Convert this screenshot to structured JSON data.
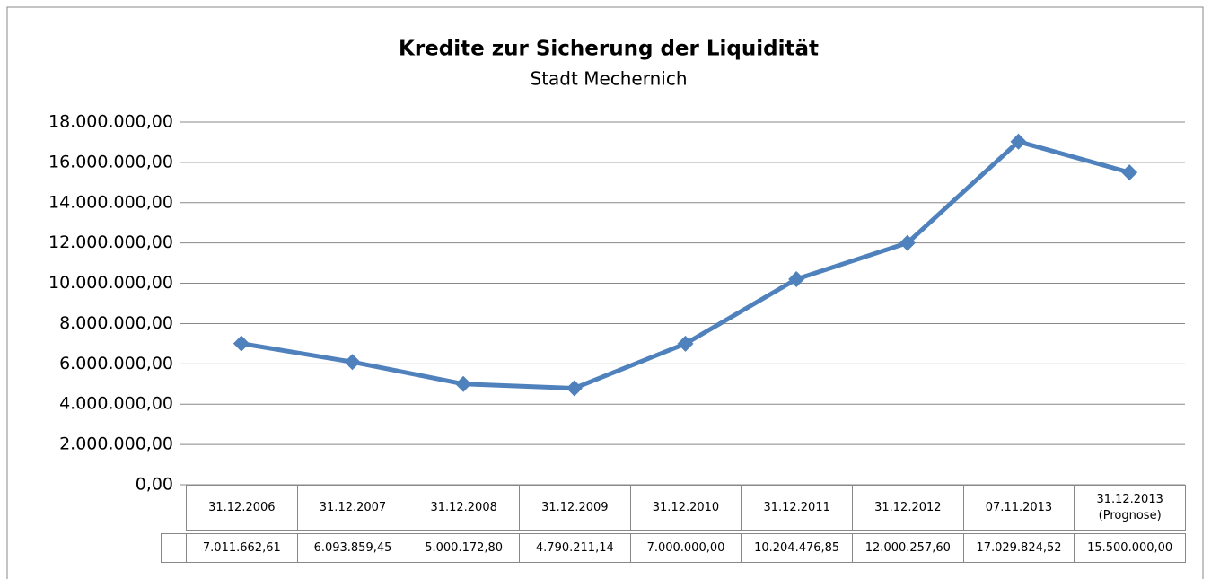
{
  "chart_data": {
    "type": "line",
    "title": "Kredite zur Sicherung der Liquidität",
    "subtitle": "Stadt Mechernich",
    "categories": [
      "31.12.2006",
      "31.12.2007",
      "31.12.2008",
      "31.12.2009",
      "31.12.2010",
      "31.12.2011",
      "31.12.2012",
      "07.11.2013",
      "31.12.2013 (Prognose)"
    ],
    "values": [
      7011662.61,
      6093859.45,
      5000172.8,
      4790211.14,
      7000000.0,
      10204476.85,
      12000257.6,
      17029824.52,
      15500000.0
    ],
    "value_labels": [
      "7.011.662,61",
      "6.093.859,45",
      "5.000.172,80",
      "4.790.211,14",
      "7.000.000,00",
      "10.204.476,85",
      "12.000.257,60",
      "17.029.824,52",
      "15.500.000,00"
    ],
    "color": "#4f81bd",
    "ylim": [
      0,
      18000000
    ],
    "yticks": [
      {
        "value": 0,
        "label": "0,00"
      },
      {
        "value": 2000000,
        "label": "2.000.000,00"
      },
      {
        "value": 4000000,
        "label": "4.000.000,00"
      },
      {
        "value": 6000000,
        "label": "6.000.000,00"
      },
      {
        "value": 8000000,
        "label": "8.000.000,00"
      },
      {
        "value": 10000000,
        "label": "10.000.000,00"
      },
      {
        "value": 12000000,
        "label": "12.000.000,00"
      },
      {
        "value": 14000000,
        "label": "14.000.000,00"
      },
      {
        "value": 16000000,
        "label": "16.000.000,00"
      },
      {
        "value": 18000000,
        "label": "18.000.000,00"
      }
    ],
    "grid": true
  }
}
